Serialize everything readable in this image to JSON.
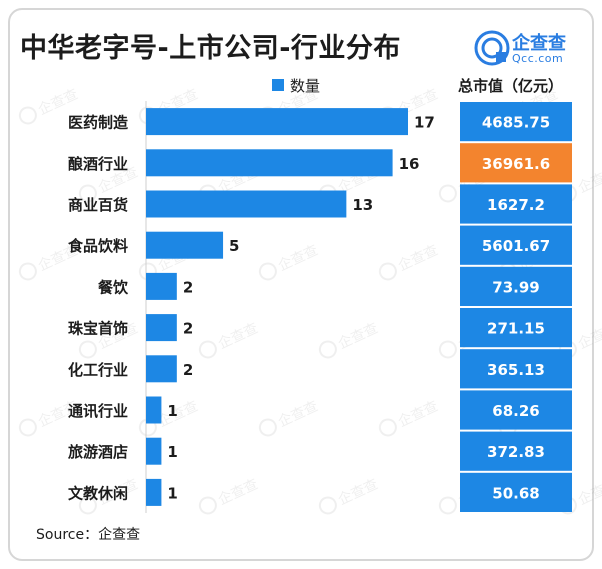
{
  "title": "中华老字号-上市公司-行业分布",
  "logo": {
    "name": "企查查",
    "url": "Qcc.com",
    "icon": "qcc-logo-icon"
  },
  "watermark": "企查查",
  "source": "Source：企查查",
  "colors": {
    "bar": "#1d87e4",
    "cell": "#1d87e4",
    "highlight": "#f3842e",
    "text": "#1c1c1c"
  },
  "chart_data": {
    "type": "bar",
    "orientation": "horizontal",
    "categories": [
      "医药制造",
      "酿酒行业",
      "商业百货",
      "食品饮料",
      "餐饮",
      "珠宝首饰",
      "化工行业",
      "通讯行业",
      "旅游酒店",
      "文教休闲"
    ],
    "series": [
      {
        "name": "数量",
        "values": [
          17,
          16,
          13,
          5,
          2,
          2,
          2,
          1,
          1,
          1
        ]
      }
    ],
    "xlim": [
      0,
      17
    ],
    "table": {
      "header": "总市值（亿元）",
      "values": [
        "4685.75",
        "36961.6",
        "1627.2",
        "5601.67",
        "73.99",
        "271.15",
        "365.13",
        "68.26",
        "372.83",
        "50.68"
      ],
      "highlight_index": 1
    },
    "legend": "top",
    "grid": false
  }
}
